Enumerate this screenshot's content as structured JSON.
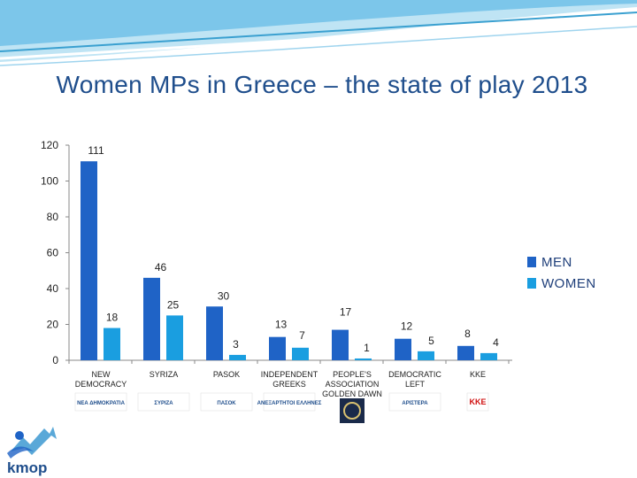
{
  "title": "Women MPs in Greece – the state of play 2013",
  "colors": {
    "men": "#1f63c6",
    "women": "#1a9ee0",
    "axis": "#888888",
    "text": "#222222",
    "title": "#1f4e8c",
    "band_dark": "#3aa0d0",
    "band_light": "#bfe4f4"
  },
  "chart_data": {
    "type": "bar",
    "categories": [
      "NEW DEMOCRACY",
      "SYRIZA",
      "PASOK",
      "INDEPENDENT GREEKS",
      "PEOPLE'S ASSOCIATION GOLDEN DAWN",
      "DEMOCRATIC LEFT",
      "KKE"
    ],
    "series": [
      {
        "name": "MEN",
        "values": [
          111,
          46,
          30,
          13,
          17,
          12,
          8
        ]
      },
      {
        "name": "WOMEN",
        "values": [
          18,
          25,
          3,
          7,
          1,
          5,
          4
        ]
      }
    ],
    "ylim": [
      0,
      120
    ],
    "yticks": [
      0,
      20,
      40,
      60,
      80,
      100,
      120
    ],
    "legend_position": "right",
    "grid": false
  },
  "legend": [
    {
      "label": "MEN"
    },
    {
      "label": "WOMEN"
    }
  ],
  "party_logos": [
    {
      "icon": "new-democracy-logo",
      "text": "ΝΕΑ ΔΗΜΟΚΡΑΤΙΑ"
    },
    {
      "icon": "syriza-logo",
      "text": "ΣΥΡΙΖΑ"
    },
    {
      "icon": "pasok-logo",
      "text": "ΠΑΣΟΚ"
    },
    {
      "icon": "independent-greeks-logo",
      "text": "ΑΝΕΞΑΡΤΗΤΟΙ ΕΛΛΗΝΕΣ"
    },
    {
      "icon": "golden-dawn-logo",
      "text": ""
    },
    {
      "icon": "democratic-left-logo",
      "text": "ΑΡΙΣΤΕΡΑ"
    },
    {
      "icon": "kke-logo",
      "text": "KKE"
    }
  ],
  "brand": {
    "icon": "kmop-logo",
    "text": "kmop"
  }
}
